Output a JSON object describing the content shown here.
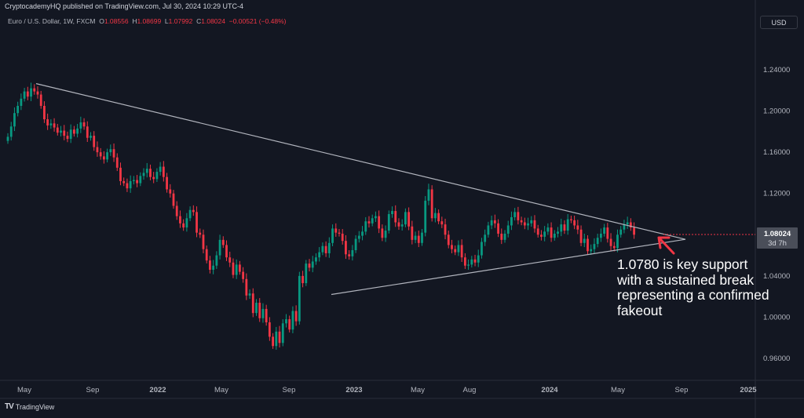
{
  "header": {
    "published": "CryptocademyHQ published on TradingView.com, Jul 30, 2024 10:29 UTC-4",
    "symbol": "Euro / U.S. Dollar, 1W, FXCM",
    "o_label": "O",
    "o": "1.08556",
    "h_label": "H",
    "h": "1.08699",
    "l_label": "L",
    "l": "1.07992",
    "c_label": "C",
    "c": "1.08024",
    "change": "−0.00521 (−0.48%)"
  },
  "currency_button": "USD",
  "price_label": {
    "price": "1.08024",
    "countdown": "3d 7h"
  },
  "annotation": "1.0780 is key support with a sustained break representing a confirmed fakeout",
  "footer": {
    "logo": "TV",
    "brand": "TradingView"
  },
  "colors": {
    "up": "#089981",
    "down": "#f23645",
    "line": "#b2b5be",
    "arrow": "#f23645",
    "background": "#131722"
  },
  "chart_data": {
    "type": "candlestick",
    "instrument": "Euro / U.S. Dollar",
    "timeframe": "1W",
    "x_ticks": [
      "May",
      "Sep",
      "2022",
      "May",
      "Sep",
      "2023",
      "May",
      "Aug",
      "2024",
      "May",
      "Sep",
      "2025"
    ],
    "x_ticks_bold": [
      false,
      false,
      true,
      false,
      false,
      true,
      false,
      false,
      true,
      false,
      false,
      true
    ],
    "y_ticks": [
      "1.24000",
      "1.20000",
      "1.16000",
      "1.12000",
      "1.08000",
      "1.04000",
      "1.00000",
      "0.96000"
    ],
    "ylim": [
      0.946,
      1.258
    ],
    "last_price": 1.08024,
    "closes": [
      1.175,
      1.185,
      1.198,
      1.205,
      1.212,
      1.219,
      1.214,
      1.222,
      1.219,
      1.216,
      1.205,
      1.192,
      1.186,
      1.188,
      1.184,
      1.179,
      1.181,
      1.176,
      1.173,
      1.182,
      1.178,
      1.183,
      1.189,
      1.185,
      1.174,
      1.176,
      1.165,
      1.16,
      1.156,
      1.153,
      1.16,
      1.163,
      1.155,
      1.145,
      1.132,
      1.13,
      1.125,
      1.132,
      1.133,
      1.13,
      1.137,
      1.14,
      1.144,
      1.136,
      1.134,
      1.141,
      1.146,
      1.136,
      1.124,
      1.12,
      1.108,
      1.098,
      1.091,
      1.087,
      1.096,
      1.104,
      1.102,
      1.082,
      1.08,
      1.066,
      1.055,
      1.046,
      1.05,
      1.06,
      1.075,
      1.07,
      1.058,
      1.053,
      1.041,
      1.051,
      1.044,
      1.037,
      1.021,
      1.023,
      1.004,
      1.014,
      0.999,
      1.008,
      0.995,
      0.981,
      0.972,
      0.986,
      0.975,
      0.994,
      0.998,
      0.988,
      1.006,
      0.996,
      1.04,
      1.033,
      1.052,
      1.048,
      1.054,
      1.058,
      1.063,
      1.069,
      1.062,
      1.072,
      1.086,
      1.082,
      1.081,
      1.074,
      1.061,
      1.059,
      1.065,
      1.076,
      1.079,
      1.083,
      1.093,
      1.091,
      1.096,
      1.098,
      1.086,
      1.077,
      1.084,
      1.1,
      1.103,
      1.092,
      1.088,
      1.09,
      1.102,
      1.088,
      1.075,
      1.079,
      1.072,
      1.082,
      1.113,
      1.124,
      1.096,
      1.101,
      1.093,
      1.09,
      1.08,
      1.07,
      1.066,
      1.063,
      1.07,
      1.058,
      1.05,
      1.051,
      1.056,
      1.053,
      1.06,
      1.073,
      1.08,
      1.089,
      1.094,
      1.091,
      1.081,
      1.075,
      1.081,
      1.089,
      1.097,
      1.102,
      1.094,
      1.092,
      1.089,
      1.091,
      1.094,
      1.086,
      1.08,
      1.078,
      1.083,
      1.087,
      1.077,
      1.081,
      1.083,
      1.09,
      1.084,
      1.095,
      1.094,
      1.089,
      1.085,
      1.072,
      1.076,
      1.064,
      1.066,
      1.071,
      1.077,
      1.081,
      1.087,
      1.076,
      1.069,
      1.067,
      1.08,
      1.085,
      1.09,
      1.092,
      1.087,
      1.08
    ],
    "trendline_upper": {
      "from": {
        "date": "2021 May",
        "price": 1.2266
      },
      "to": {
        "date": "2024 Sep",
        "price": 1.0755
      }
    },
    "trendline_lower": {
      "from": {
        "date": "2022 Nov",
        "price": 1.022
      },
      "to": {
        "date": "2024 Sep",
        "price": 1.0755
      }
    }
  }
}
